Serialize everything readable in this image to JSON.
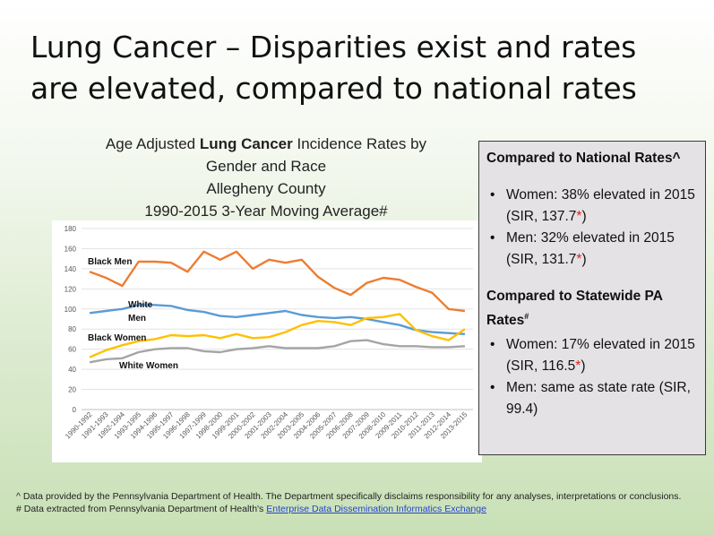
{
  "slide": {
    "title": "Lung Cancer – Disparities exist and rates are elevated, compared to national rates"
  },
  "chart_title": {
    "prefix": "Age Adjusted ",
    "bold": "Lung Cancer",
    "suffix": " Incidence Rates by",
    "line2": "Gender and Race",
    "line3": "Allegheny County",
    "line4": "1990-2015 3-Year Moving Average#"
  },
  "chart_data": {
    "type": "line",
    "categories": [
      "1990-1992",
      "1991-1993",
      "1992-1994",
      "1993-1995",
      "1994-1996",
      "1995-1997",
      "1996-1998",
      "1997-1999",
      "1998-2000",
      "1999-2001",
      "2000-2002",
      "2001-2003",
      "2002-2004",
      "2003-2005",
      "2004-2006",
      "2005-2007",
      "2006-2008",
      "2007-2009",
      "2008-2010",
      "2009-2011",
      "2010-2012",
      "2011-2013",
      "2012-2014",
      "2013-2015"
    ],
    "ylim": [
      0,
      180
    ],
    "yticks": [
      0,
      20,
      40,
      60,
      80,
      100,
      120,
      140,
      160,
      180
    ],
    "grid": true,
    "series": [
      {
        "name": "Black Men",
        "color": "#ed7d31",
        "values": [
          137,
          131,
          123,
          147,
          147,
          146,
          137,
          157,
          149,
          157,
          140,
          149,
          146,
          149,
          132,
          121,
          114,
          126,
          131,
          129,
          122,
          116,
          100,
          98
        ]
      },
      {
        "name": "White Men",
        "color": "#5b9bd5",
        "values": [
          96,
          98,
          100,
          104,
          104,
          103,
          99,
          97,
          93,
          92,
          94,
          96,
          98,
          94,
          92,
          91,
          92,
          90,
          87,
          84,
          79,
          77,
          76,
          75
        ]
      },
      {
        "name": "Black Women",
        "color": "#ffc000",
        "values": [
          52,
          59,
          64,
          68,
          70,
          74,
          73,
          74,
          71,
          75,
          71,
          72,
          77,
          84,
          88,
          87,
          84,
          91,
          92,
          95,
          79,
          73,
          69,
          80
        ]
      },
      {
        "name": "White Women",
        "color": "#a5a5a5",
        "values": [
          47,
          50,
          51,
          57,
          60,
          61,
          61,
          58,
          57,
          60,
          61,
          63,
          61,
          61,
          61,
          63,
          68,
          69,
          65,
          63,
          63,
          62,
          62,
          63
        ]
      }
    ],
    "legend_placement": "inline labels",
    "series_labels": {
      "black_men": "Black Men",
      "white_men_line1": "White",
      "white_men_line2": "Men",
      "black_women": "Black Women",
      "white_women": "White Women"
    }
  },
  "info_box": {
    "national_heading": "Compared to National Rates^",
    "national_items": [
      {
        "text": "Women: 38% elevated in 2015 (SIR, 137.7",
        "star": "*",
        "tail": ")"
      },
      {
        "text": "Men: 32% elevated in 2015 (SIR, 131.7",
        "star": "*",
        "tail": ")"
      }
    ],
    "state_heading": "Compared to Statewide PA Rates",
    "state_heading_sup": "#",
    "state_items": [
      {
        "text": "Women: 17% elevated in 2015 (SIR, 116.5",
        "star": "*",
        "tail": ")"
      },
      {
        "text": "Men: same as state rate (SIR, 99.4)",
        "star": "",
        "tail": ""
      }
    ]
  },
  "footnotes": {
    "line1": "^ Data provided by the Pennsylvania Department of Health. The Department specifically disclaims responsibility for any analyses, interpretations or conclusions.",
    "line2_prefix": "# Data extracted from Pennsylvania Department of Health's ",
    "line2_link": "Enterprise Data Dissemination Informatics Exchange"
  }
}
